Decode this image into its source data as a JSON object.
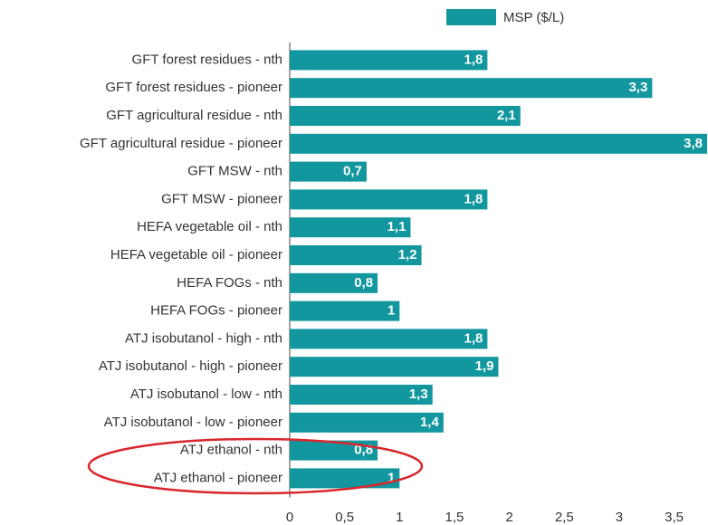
{
  "chart_data": {
    "type": "bar",
    "orientation": "horizontal",
    "categories": [
      "GFT forest residues - nth",
      "GFT forest residues - pioneer",
      "GFT agricultural residue - nth",
      "GFT agricultural residue - pioneer",
      "GFT MSW - nth",
      "GFT MSW - pioneer",
      "HEFA vegetable oil - nth",
      "HEFA vegetable oil - pioneer",
      "HEFA FOGs - nth",
      "HEFA FOGs - pioneer",
      "ATJ isobutanol - high - nth",
      "ATJ isobutanol - high - pioneer",
      "ATJ isobutanol - low - nth",
      "ATJ isobutanol - low - pioneer",
      "ATJ ethanol - nth",
      "ATJ ethanol - pioneer"
    ],
    "series": [
      {
        "name": "MSP ($/L)",
        "color": "#12979f",
        "values": [
          1.8,
          3.3,
          2.1,
          3.8,
          0.7,
          1.8,
          1.1,
          1.2,
          0.8,
          1,
          1.8,
          1.9,
          1.3,
          1.4,
          0.8,
          1
        ],
        "value_labels": [
          "1,8",
          "3,3",
          "2,1",
          "3,8",
          "0,7",
          "1,8",
          "1,1",
          "1,2",
          "0,8",
          "1",
          "1,8",
          "1,9",
          "1,3",
          "1,4",
          "0,8",
          "1"
        ]
      }
    ],
    "xlim": [
      0,
      3.8
    ],
    "xticks": [
      0,
      {
        "value": 0.5,
        "label": "0,5"
      },
      1,
      {
        "value": 1.5,
        "label": "1,5"
      },
      2,
      {
        "value": 2.5,
        "label": "2,5"
      },
      3,
      {
        "value": 3.5,
        "label": "3,5"
      }
    ],
    "legend": "top"
  }
}
